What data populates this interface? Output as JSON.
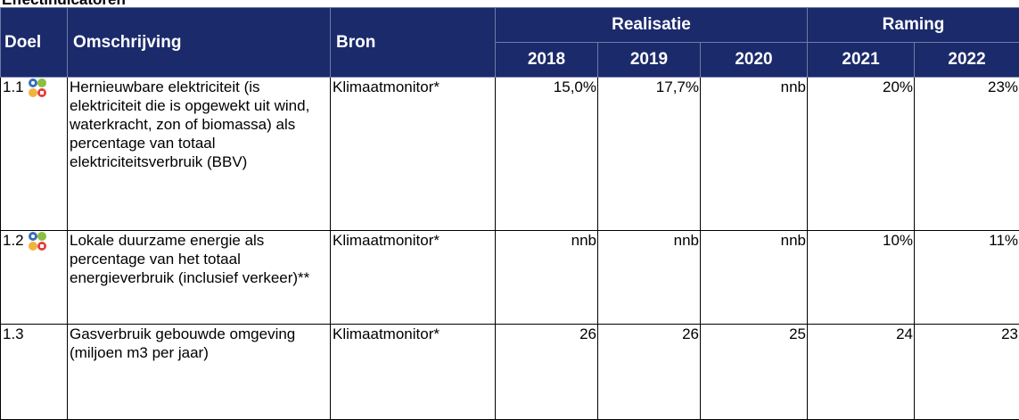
{
  "header": {
    "title": "Effectindicatoren"
  },
  "table": {
    "head": {
      "doel": "Doel",
      "omschrijving": "Omschrijving",
      "bron": "Bron",
      "realisatie": "Realisatie",
      "raming": "Raming",
      "years": [
        "2018",
        "2019",
        "2020",
        "2021",
        "2022"
      ]
    },
    "rows": [
      {
        "doel": "1.1",
        "icon": true,
        "omschrijving": "Hernieuwbare elektriciteit (is elektriciteit die is opgewekt uit wind, waterkracht, zon of biomassa) als percentage van totaal elektriciteitsverbruik (BBV)",
        "bron": "Klimaatmonitor*",
        "values": [
          "15,0%",
          "17,7%",
          "nnb",
          "20%",
          "23%"
        ]
      },
      {
        "doel": "1.2",
        "icon": true,
        "omschrijving": "Lokale duurzame energie als percentage van het totaal energieverbruik (inclusief verkeer)**",
        "bron": "Klimaatmonitor*",
        "values": [
          "nnb",
          "nnb",
          "nnb",
          "10%",
          "11%"
        ]
      },
      {
        "doel": "1.3",
        "icon": false,
        "omschrijving": "Gasverbruik gebouwde omgeving (miljoen m3 per jaar)",
        "bron": "Klimaatmonitor*",
        "values": [
          "26",
          "26",
          "25",
          "24",
          "23"
        ]
      }
    ]
  }
}
